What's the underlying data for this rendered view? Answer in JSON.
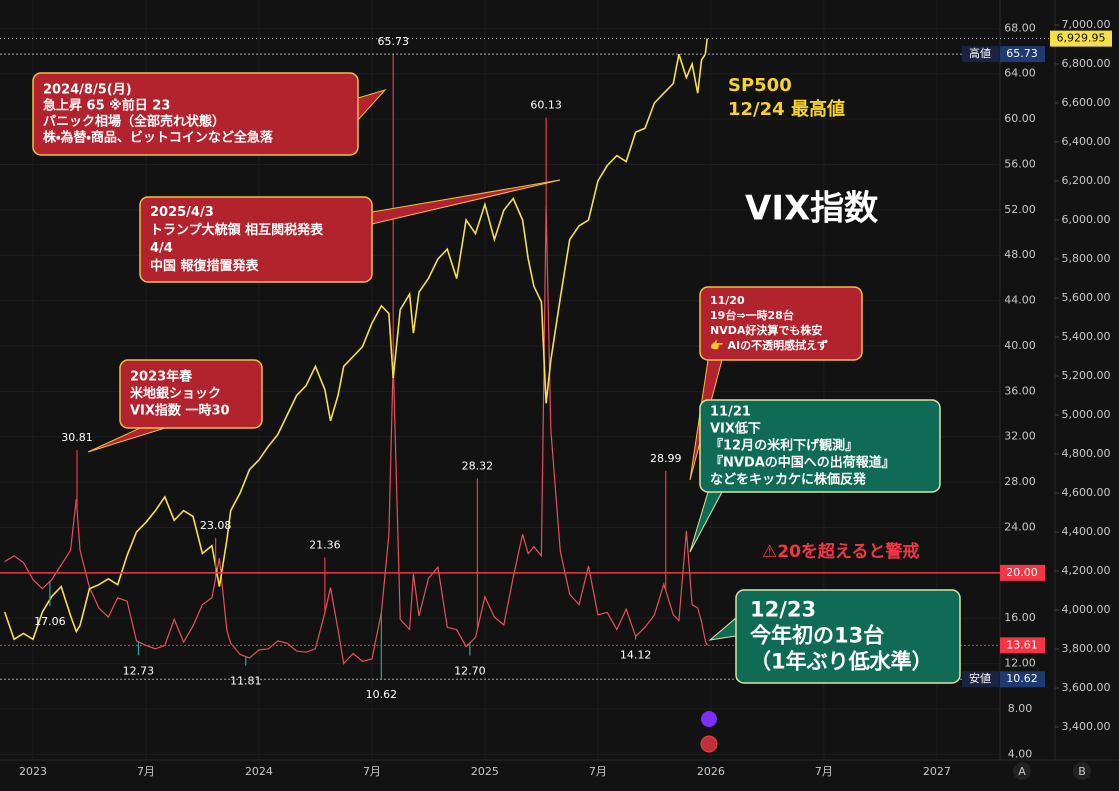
{
  "chart_data": {
    "type": "line",
    "xlim": [
      -1.75,
      51.35
    ],
    "xticks": [
      {
        "value": 0,
        "label": "2023"
      },
      {
        "value": 6,
        "label": "7月"
      },
      {
        "value": 12,
        "label": "2024"
      },
      {
        "value": 18,
        "label": "7月"
      },
      {
        "value": 24,
        "label": "2025"
      },
      {
        "value": 30,
        "label": "7月"
      },
      {
        "value": 36,
        "label": "2026"
      },
      {
        "value": 42,
        "label": "7月"
      },
      {
        "value": 48,
        "label": "2027"
      }
    ],
    "ylim": [
      3.5,
      70.5
    ],
    "yticks": [
      {
        "value": 4,
        "label": "4.00"
      },
      {
        "value": 8,
        "label": "8.00"
      },
      {
        "value": 12,
        "label": "12.00"
      },
      {
        "value": 16,
        "label": "16.00"
      },
      {
        "value": 20,
        "label": "20.00"
      },
      {
        "value": 24,
        "label": "24.00"
      },
      {
        "value": 28,
        "label": "28.00"
      },
      {
        "value": 32,
        "label": "32.00"
      },
      {
        "value": 36,
        "label": "36.00"
      },
      {
        "value": 40,
        "label": "40.00"
      },
      {
        "value": 44,
        "label": "44.00"
      },
      {
        "value": 48,
        "label": "48.00"
      },
      {
        "value": 52,
        "label": "52.00"
      },
      {
        "value": 56,
        "label": "56.00"
      },
      {
        "value": 60,
        "label": "60.00"
      },
      {
        "value": 64,
        "label": "64.00"
      },
      {
        "value": 68,
        "label": "68.00"
      }
    ],
    "y2lim": [
      3231,
      7128
    ],
    "y2ticks": [
      {
        "value": 3400,
        "label": "3,400.00"
      },
      {
        "value": 3600,
        "label": "3,600.00"
      },
      {
        "value": 3800,
        "label": "3,800.00"
      },
      {
        "value": 4000,
        "label": "4,000.00"
      },
      {
        "value": 4200,
        "label": "4,200.00"
      },
      {
        "value": 4400,
        "label": "4,400.00"
      },
      {
        "value": 4600,
        "label": "4,600.00"
      },
      {
        "value": 4800,
        "label": "4,800.00"
      },
      {
        "value": 5000,
        "label": "5,000.00"
      },
      {
        "value": 5200,
        "label": "5,200.00"
      },
      {
        "value": 5400,
        "label": "5,400.00"
      },
      {
        "value": 5600,
        "label": "5,600.00"
      },
      {
        "value": 5800,
        "label": "5,800.00"
      },
      {
        "value": 6000,
        "label": "6,000.00"
      },
      {
        "value": 6200,
        "label": "6,200.00"
      },
      {
        "value": 6400,
        "label": "6,400.00"
      },
      {
        "value": 6600,
        "label": "6,600.00"
      },
      {
        "value": 6800,
        "label": "6,800.00"
      },
      {
        "value": 7000,
        "label": "7,000.00"
      }
    ],
    "grid": true,
    "series": [
      {
        "name": "VIX指数",
        "color": "#e5505c",
        "x": [
          -1.5,
          -1,
          -0.5,
          0,
          0.5,
          1,
          1.5,
          2,
          2.3,
          2.5,
          3,
          3.5,
          4,
          4.5,
          5,
          5.5,
          6,
          6.5,
          7,
          7.5,
          8,
          8.5,
          9,
          9.5,
          9.9,
          10.3,
          10.5,
          11,
          11.5,
          12,
          12.5,
          13,
          13.5,
          14,
          14.5,
          15,
          15.5,
          15.8,
          16.2,
          16.5,
          17,
          17.5,
          18,
          18.5,
          18.9,
          19.13,
          19.5,
          20,
          20.2,
          20.5,
          21,
          21.5,
          22,
          22.5,
          23,
          23.5,
          24,
          24.5,
          25,
          25.5,
          26,
          26.3,
          26.6,
          27,
          27.25,
          27.5,
          28,
          28.5,
          29,
          29.5,
          30,
          30.5,
          31,
          31.5,
          32,
          32.5,
          33,
          33.5,
          34,
          34.3,
          34.7,
          35,
          35.3,
          35.5,
          35.7,
          35.8
        ],
        "values": [
          21,
          21.5,
          20.9,
          19.4,
          18.6,
          19.4,
          20.7,
          22,
          26.5,
          22,
          18.7,
          16.9,
          16.1,
          17.8,
          17.5,
          14,
          13.6,
          13.3,
          13.6,
          15.9,
          13.9,
          15.3,
          17.2,
          17.8,
          21.3,
          14.9,
          13.8,
          12.8,
          12.5,
          13.2,
          13.3,
          14,
          13.8,
          13.1,
          13,
          13.3,
          16.5,
          18.7,
          15,
          12,
          12.9,
          12.2,
          12.4,
          16.5,
          23.4,
          38.6,
          15.9,
          15,
          19.9,
          16.2,
          19.5,
          20.5,
          15.2,
          15,
          13.5,
          14.3,
          17.9,
          16.1,
          15.4,
          19.6,
          23.4,
          21.7,
          22.3,
          21.5,
          52.3,
          32.6,
          21.9,
          18.1,
          17.2,
          20.6,
          16.3,
          16.5,
          15,
          16.8,
          14.4,
          15.2,
          16.3,
          19,
          16.3,
          15.8,
          23.7,
          17.2,
          16.9,
          15.7,
          14,
          13.61
        ]
      },
      {
        "name": "SP500",
        "color": "#f5e04a",
        "axis": "y2",
        "x": [
          -1.5,
          -1,
          -0.5,
          0,
          0.5,
          1,
          1.5,
          2,
          2.3,
          2.5,
          3,
          3.5,
          4,
          4.5,
          5,
          5.5,
          6,
          6.5,
          7,
          7.5,
          8,
          8.5,
          9,
          9.5,
          9.9,
          10.3,
          10.5,
          11,
          11.5,
          12,
          12.5,
          13,
          13.5,
          14,
          14.5,
          15,
          15.5,
          15.8,
          16.2,
          16.5,
          17,
          17.5,
          18,
          18.5,
          18.9,
          19.13,
          19.5,
          20,
          20.2,
          20.5,
          21,
          21.5,
          22,
          22.5,
          23,
          23.5,
          24,
          24.5,
          25,
          25.5,
          26,
          26.3,
          26.6,
          27,
          27.25,
          27.5,
          28,
          28.5,
          29,
          29.5,
          30,
          30.5,
          31,
          31.5,
          32,
          32.5,
          33,
          33.5,
          34,
          34.3,
          34.7,
          35,
          35.3,
          35.5,
          35.7,
          35.8
        ],
        "values": [
          3990,
          3850,
          3880,
          3850,
          3990,
          4070,
          4120,
          3970,
          3890,
          3920,
          4110,
          4130,
          4160,
          4130,
          4280,
          4400,
          4450,
          4510,
          4580,
          4460,
          4510,
          4480,
          4290,
          4330,
          4120,
          4360,
          4510,
          4600,
          4720,
          4770,
          4840,
          4900,
          5000,
          5100,
          5150,
          5250,
          5130,
          4970,
          5100,
          5250,
          5300,
          5350,
          5470,
          5560,
          5520,
          5190,
          5540,
          5620,
          5420,
          5630,
          5700,
          5800,
          5850,
          5700,
          6000,
          5930,
          6080,
          5900,
          6050,
          6110,
          6000,
          5800,
          5660,
          5580,
          5060,
          5280,
          5600,
          5900,
          5970,
          6000,
          6200,
          6280,
          6330,
          6300,
          6450,
          6470,
          6600,
          6650,
          6700,
          6850,
          6730,
          6800,
          6650,
          6820,
          6850,
          6929.95
        ]
      }
    ],
    "extremes": [
      {
        "x": 2.34,
        "value": 30.81
      },
      {
        "x": 0.9,
        "value": 17.06
      },
      {
        "x": 5.6,
        "value": 12.73
      },
      {
        "x": 9.7,
        "value": 23.08
      },
      {
        "x": 11.3,
        "value": 11.81
      },
      {
        "x": 15.5,
        "value": 21.36
      },
      {
        "x": 19.13,
        "value": 65.73
      },
      {
        "x": 18.5,
        "value": 10.62
      },
      {
        "x": 23.6,
        "value": 28.32
      },
      {
        "x": 23.2,
        "value": 12.7,
        "label": "12.70"
      },
      {
        "x": 27.25,
        "value": 60.13
      },
      {
        "x": 32,
        "value": 14.12
      },
      {
        "x": 33.6,
        "value": 28.99
      }
    ],
    "price_lines": [
      {
        "name": "高値",
        "value": 65.73,
        "label": "65.73"
      },
      {
        "value": 20,
        "label": "20.00"
      },
      {
        "value": 13.61,
        "label": "13.61"
      },
      {
        "name": "安値",
        "value": 10.62,
        "label": "10.62"
      }
    ],
    "last_price": {
      "value": 6929.95,
      "label": "6,929.95"
    },
    "annotations": [
      {
        "lines": [
          "2024/8/5(月)",
          "急上昇 65 ※前日 23",
          "パニック相場（全部売れ状態）",
          "株・為替・商品、ビットコインなど全急落"
        ]
      },
      {
        "lines": [
          "2025/4/3",
          "トランプ大統領 相互関税発表",
          "4/4",
          "中国 報復措置発表"
        ]
      },
      {
        "lines": [
          "2023年春",
          "米地銀ショック",
          "VIX指数 一時30"
        ]
      },
      {
        "lines": [
          "11/20",
          "19台⇒一時28台",
          "NVDA好決算でも株安",
          "👉 AIの不透明感拭えず"
        ]
      },
      {
        "lines": [
          "11/21",
          "VIX低下",
          "『12月の米利下げ観測』",
          "『NVDAの中国への出荷報道』",
          "などをキッカケに株価反発"
        ]
      },
      {
        "lines": [
          "12/23",
          "今年初の13台",
          "（1年ぶり低水準）"
        ]
      }
    ],
    "sp_note": "12/24 最高値",
    "warning": "⚠20を超えると警戒",
    "axis_buttons": [
      "A",
      "B"
    ]
  }
}
